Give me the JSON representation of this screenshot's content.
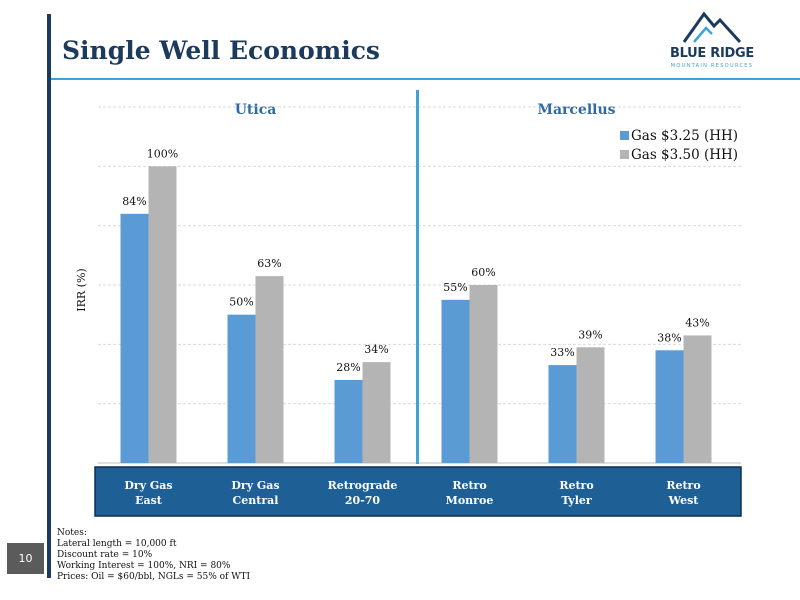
{
  "slide": {
    "title": "Single Well Economics",
    "page_number": "10"
  },
  "logo": {
    "name": "BLUE RIDGE",
    "subtitle": "MOUNTAIN RESOURCES"
  },
  "notes": {
    "heading": "Notes:",
    "lines": [
      "Lateral length = 10,000 ft",
      "Discount rate = 10%",
      "Working Interest = 100%, NRI = 80%",
      "Prices:  Oil = $60/bbl, NGLs = 55% of WTI"
    ]
  },
  "colors": {
    "navy": "#1b3a5c",
    "accent": "#3fa3d6",
    "series1": "#5b9bd5",
    "series2": "#b4b4b4",
    "category_band": "#1e6096"
  },
  "chart_data": {
    "type": "bar",
    "ylabel": "IRR (%)",
    "ylim": [
      0,
      120
    ],
    "grid": true,
    "legend_position": "top-right",
    "regions": [
      {
        "label": "Utica",
        "categories": [
          0,
          1,
          2
        ]
      },
      {
        "label": "Marcellus",
        "categories": [
          3,
          4,
          5
        ]
      }
    ],
    "categories": [
      [
        "Dry Gas",
        "East"
      ],
      [
        "Dry Gas",
        "Central"
      ],
      [
        "Retrograde",
        "20-70"
      ],
      [
        "Retro",
        "Monroe"
      ],
      [
        "Retro",
        "Tyler"
      ],
      [
        "Retro",
        "West"
      ]
    ],
    "series": [
      {
        "name": "Gas $3.25 (HH)",
        "values": [
          84,
          50,
          28,
          55,
          33,
          38
        ],
        "labels": [
          "84%",
          "50%",
          "28%",
          "55%",
          "33%",
          "38%"
        ]
      },
      {
        "name": "Gas $3.50 (HH)",
        "values": [
          100,
          63,
          34,
          60,
          39,
          43
        ],
        "labels": [
          "100%",
          "63%",
          "34%",
          "60%",
          "39%",
          "43%"
        ]
      }
    ]
  }
}
